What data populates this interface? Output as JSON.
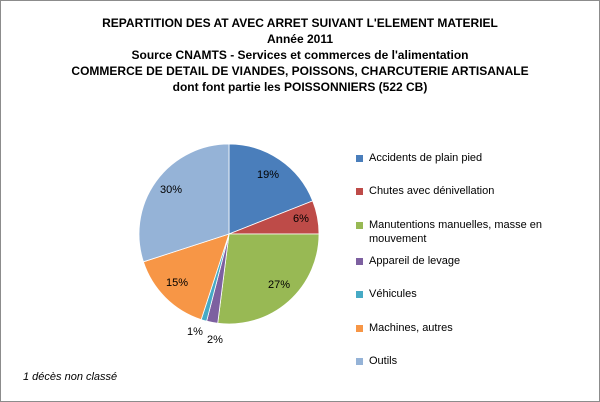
{
  "title_lines": [
    "REPARTITION DES AT AVEC ARRET SUIVANT L'ELEMENT MATERIEL",
    "Année 2011",
    "Source CNAMTS -  Services et commerces de l'alimentation",
    "COMMERCE DE DETAIL DE VIANDES, POISSONS, CHARCUTERIE ARTISANALE",
    "dont font partie les POISSONNIERS (522 CB)"
  ],
  "note": "1 décès non classé",
  "chart_data": {
    "type": "pie",
    "title": "REPARTITION DES AT AVEC ARRET SUIVANT L'ELEMENT MATERIEL",
    "categories": [
      "Accidents de plain pied",
      "Chutes avec dénivellation",
      "Manutentions manuelles, masse en mouvement",
      "Appareil de levage",
      "Véhicules",
      "Machines, autres",
      "Outils"
    ],
    "values": [
      19,
      6,
      27,
      2,
      1,
      15,
      30
    ],
    "labels": [
      "19%",
      "6%",
      "27%",
      "2%",
      "1%",
      "15%",
      "30%"
    ],
    "colors": [
      "#4a7ebb",
      "#be4b48",
      "#98b954",
      "#7d60a0",
      "#46aac5",
      "#f79646",
      "#95b3d7"
    ],
    "legend_position": "right"
  }
}
